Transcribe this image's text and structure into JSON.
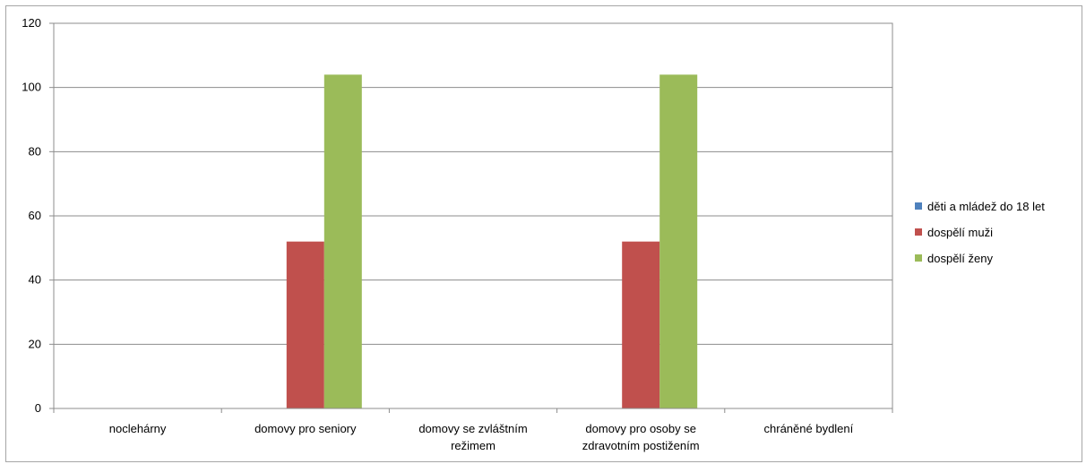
{
  "chart_data": {
    "type": "bar",
    "categories": [
      [
        "noclehárny"
      ],
      [
        "domovy pro seniory"
      ],
      [
        "domovy se zvláštním",
        "režimem"
      ],
      [
        "domovy pro osoby se",
        "zdravotním postižením"
      ],
      [
        "chráněné bydlení"
      ]
    ],
    "series": [
      {
        "name": "děti a mládež do 18 let",
        "color": "#4f81bd",
        "values": [
          0,
          0,
          0,
          0,
          0
        ]
      },
      {
        "name": "dospělí muži",
        "color": "#c0504d",
        "values": [
          0,
          52,
          0,
          52,
          0
        ]
      },
      {
        "name": "dospělí ženy",
        "color": "#9bbb59",
        "values": [
          0,
          104,
          0,
          104,
          0
        ]
      }
    ],
    "ylim": [
      0,
      120
    ],
    "yticks": [
      0,
      20,
      40,
      60,
      80,
      100,
      120
    ],
    "grid": true,
    "legend": "right"
  }
}
